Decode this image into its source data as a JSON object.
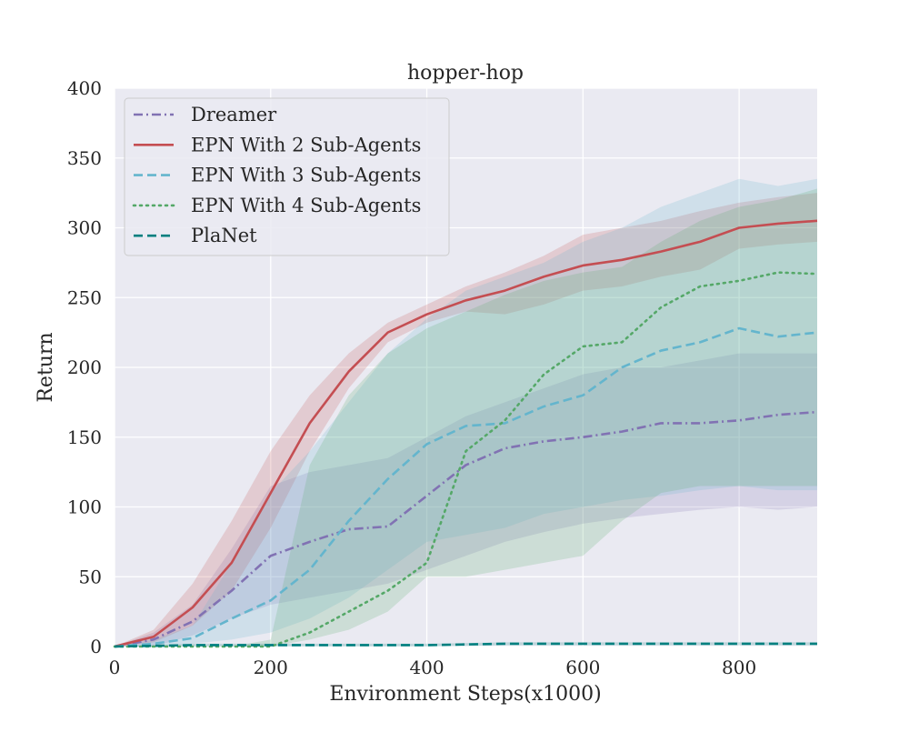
{
  "chart_data": {
    "type": "line",
    "title": "hopper-hop",
    "xlabel": "Environment Steps(x1000)",
    "ylabel": "Return",
    "xlim": [
      0,
      900
    ],
    "ylim": [
      0,
      400
    ],
    "xticks": [
      0,
      200,
      400,
      600,
      800
    ],
    "yticks": [
      0,
      50,
      100,
      150,
      200,
      250,
      300,
      350,
      400
    ],
    "grid": true,
    "legend_position": "top-left",
    "series": [
      {
        "name": "Dreamer",
        "color": "#8172b3",
        "style": "dashdot",
        "x": [
          0,
          50,
          100,
          150,
          200,
          250,
          300,
          350,
          400,
          450,
          500,
          550,
          600,
          650,
          700,
          750,
          800,
          850,
          900
        ],
        "values": [
          0,
          5,
          18,
          40,
          65,
          75,
          84,
          86,
          108,
          130,
          142,
          147,
          150,
          154,
          160,
          160,
          162,
          166,
          168
        ],
        "upper": [
          0,
          10,
          30,
          70,
          115,
          125,
          130,
          135,
          150,
          165,
          175,
          185,
          195,
          200,
          200,
          205,
          210,
          210,
          210
        ],
        "lower": [
          0,
          0,
          8,
          20,
          30,
          35,
          40,
          45,
          55,
          65,
          75,
          82,
          88,
          92,
          95,
          98,
          100,
          98,
          100
        ]
      },
      {
        "name": "EPN With 2 Sub-Agents",
        "color": "#c44e52",
        "style": "solid",
        "x": [
          0,
          50,
          100,
          150,
          200,
          250,
          300,
          350,
          400,
          450,
          500,
          550,
          600,
          650,
          700,
          750,
          800,
          850,
          900
        ],
        "values": [
          0,
          7,
          28,
          60,
          110,
          160,
          197,
          225,
          238,
          248,
          255,
          265,
          273,
          277,
          283,
          290,
          300,
          303,
          305
        ],
        "upper": [
          0,
          12,
          45,
          90,
          140,
          180,
          210,
          232,
          245,
          258,
          268,
          280,
          295,
          300,
          305,
          312,
          318,
          322,
          325
        ],
        "lower": [
          0,
          3,
          15,
          40,
          85,
          140,
          185,
          218,
          232,
          240,
          238,
          245,
          255,
          258,
          265,
          270,
          285,
          288,
          290
        ]
      },
      {
        "name": "EPN With 3 Sub-Agents",
        "color": "#64b5cd",
        "style": "dashed",
        "x": [
          0,
          50,
          100,
          150,
          200,
          250,
          300,
          350,
          400,
          450,
          500,
          550,
          600,
          650,
          700,
          750,
          800,
          850,
          900
        ],
        "values": [
          0,
          2,
          6,
          20,
          33,
          55,
          90,
          120,
          145,
          158,
          160,
          172,
          180,
          200,
          212,
          218,
          228,
          222,
          225
        ],
        "upper": [
          0,
          5,
          15,
          60,
          110,
          140,
          175,
          210,
          235,
          255,
          265,
          275,
          290,
          300,
          315,
          325,
          335,
          330,
          335
        ],
        "lower": [
          0,
          0,
          2,
          5,
          10,
          20,
          35,
          55,
          75,
          80,
          85,
          95,
          100,
          105,
          108,
          112,
          115,
          112,
          112
        ]
      },
      {
        "name": "EPN With 4 Sub-Agents",
        "color": "#55a868",
        "style": "dotted",
        "x": [
          0,
          50,
          100,
          150,
          200,
          250,
          300,
          350,
          400,
          450,
          500,
          550,
          600,
          650,
          700,
          750,
          800,
          850,
          900
        ],
        "values": [
          0,
          0,
          0,
          0,
          0,
          10,
          25,
          40,
          60,
          140,
          162,
          195,
          215,
          218,
          243,
          258,
          262,
          268,
          267
        ],
        "upper": [
          0,
          0,
          0,
          0,
          5,
          130,
          180,
          210,
          228,
          240,
          252,
          262,
          268,
          272,
          290,
          305,
          315,
          320,
          328
        ],
        "lower": [
          0,
          0,
          0,
          0,
          0,
          5,
          12,
          25,
          50,
          50,
          55,
          60,
          65,
          90,
          110,
          115,
          115,
          115,
          115
        ]
      },
      {
        "name": "PlaNet",
        "color": "#007f7f",
        "style": "dashed",
        "x": [
          0,
          100,
          200,
          300,
          400,
          500,
          600,
          700,
          800,
          900
        ],
        "values": [
          0,
          1,
          1,
          1,
          1,
          2,
          2,
          2,
          2,
          2
        ],
        "upper": [
          0,
          2,
          2,
          2,
          2,
          3,
          3,
          3,
          3,
          3
        ],
        "lower": [
          0,
          0,
          0,
          0,
          0,
          1,
          1,
          1,
          1,
          1
        ]
      }
    ]
  }
}
